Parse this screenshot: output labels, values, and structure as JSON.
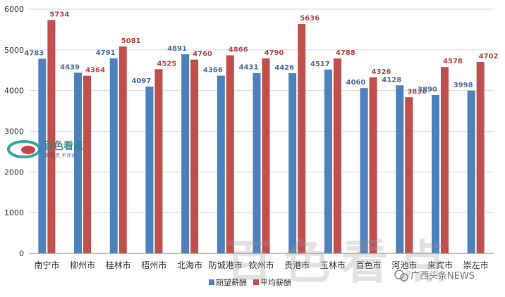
{
  "chart_data": {
    "type": "bar",
    "title": "",
    "xlabel": "",
    "ylabel": "",
    "ylim": [
      0,
      6000
    ],
    "yticks": [
      "0",
      "1000",
      "2000",
      "3000",
      "4000",
      "5000",
      "6000"
    ],
    "grid": true,
    "legend_position": "bottom",
    "categories": [
      "南宁市",
      "柳州市",
      "桂林市",
      "梧州市",
      "北海市",
      "防城港市",
      "钦州市",
      "贵港市",
      "玉林市",
      "百色市",
      "河池市",
      "来宾市",
      "崇左市"
    ],
    "series": [
      {
        "name": "期望薪酬",
        "color": "#4f81bd",
        "label_color": "#4a6fa0",
        "values": [
          4783,
          4439,
          4791,
          4097,
          4891,
          4366,
          4431,
          4426,
          4517,
          4060,
          4128,
          3890,
          3998
        ]
      },
      {
        "name": "平均薪酬",
        "color": "#c0504d",
        "label_color": "#b04a46",
        "values": [
          5734,
          4364,
          5081,
          4525,
          4760,
          4866,
          4790,
          5636,
          4788,
          4326,
          3836,
          4578,
          4702
        ]
      }
    ]
  },
  "watermarks": {
    "logo_text": "百色看点",
    "logo_subtext": "有看点 不评论",
    "large_text": "百色看点",
    "source_text": "广西头条NEWS"
  },
  "colors": {
    "grid": "#d9d9d9",
    "axis": "#888888",
    "tick_text": "#333333"
  }
}
